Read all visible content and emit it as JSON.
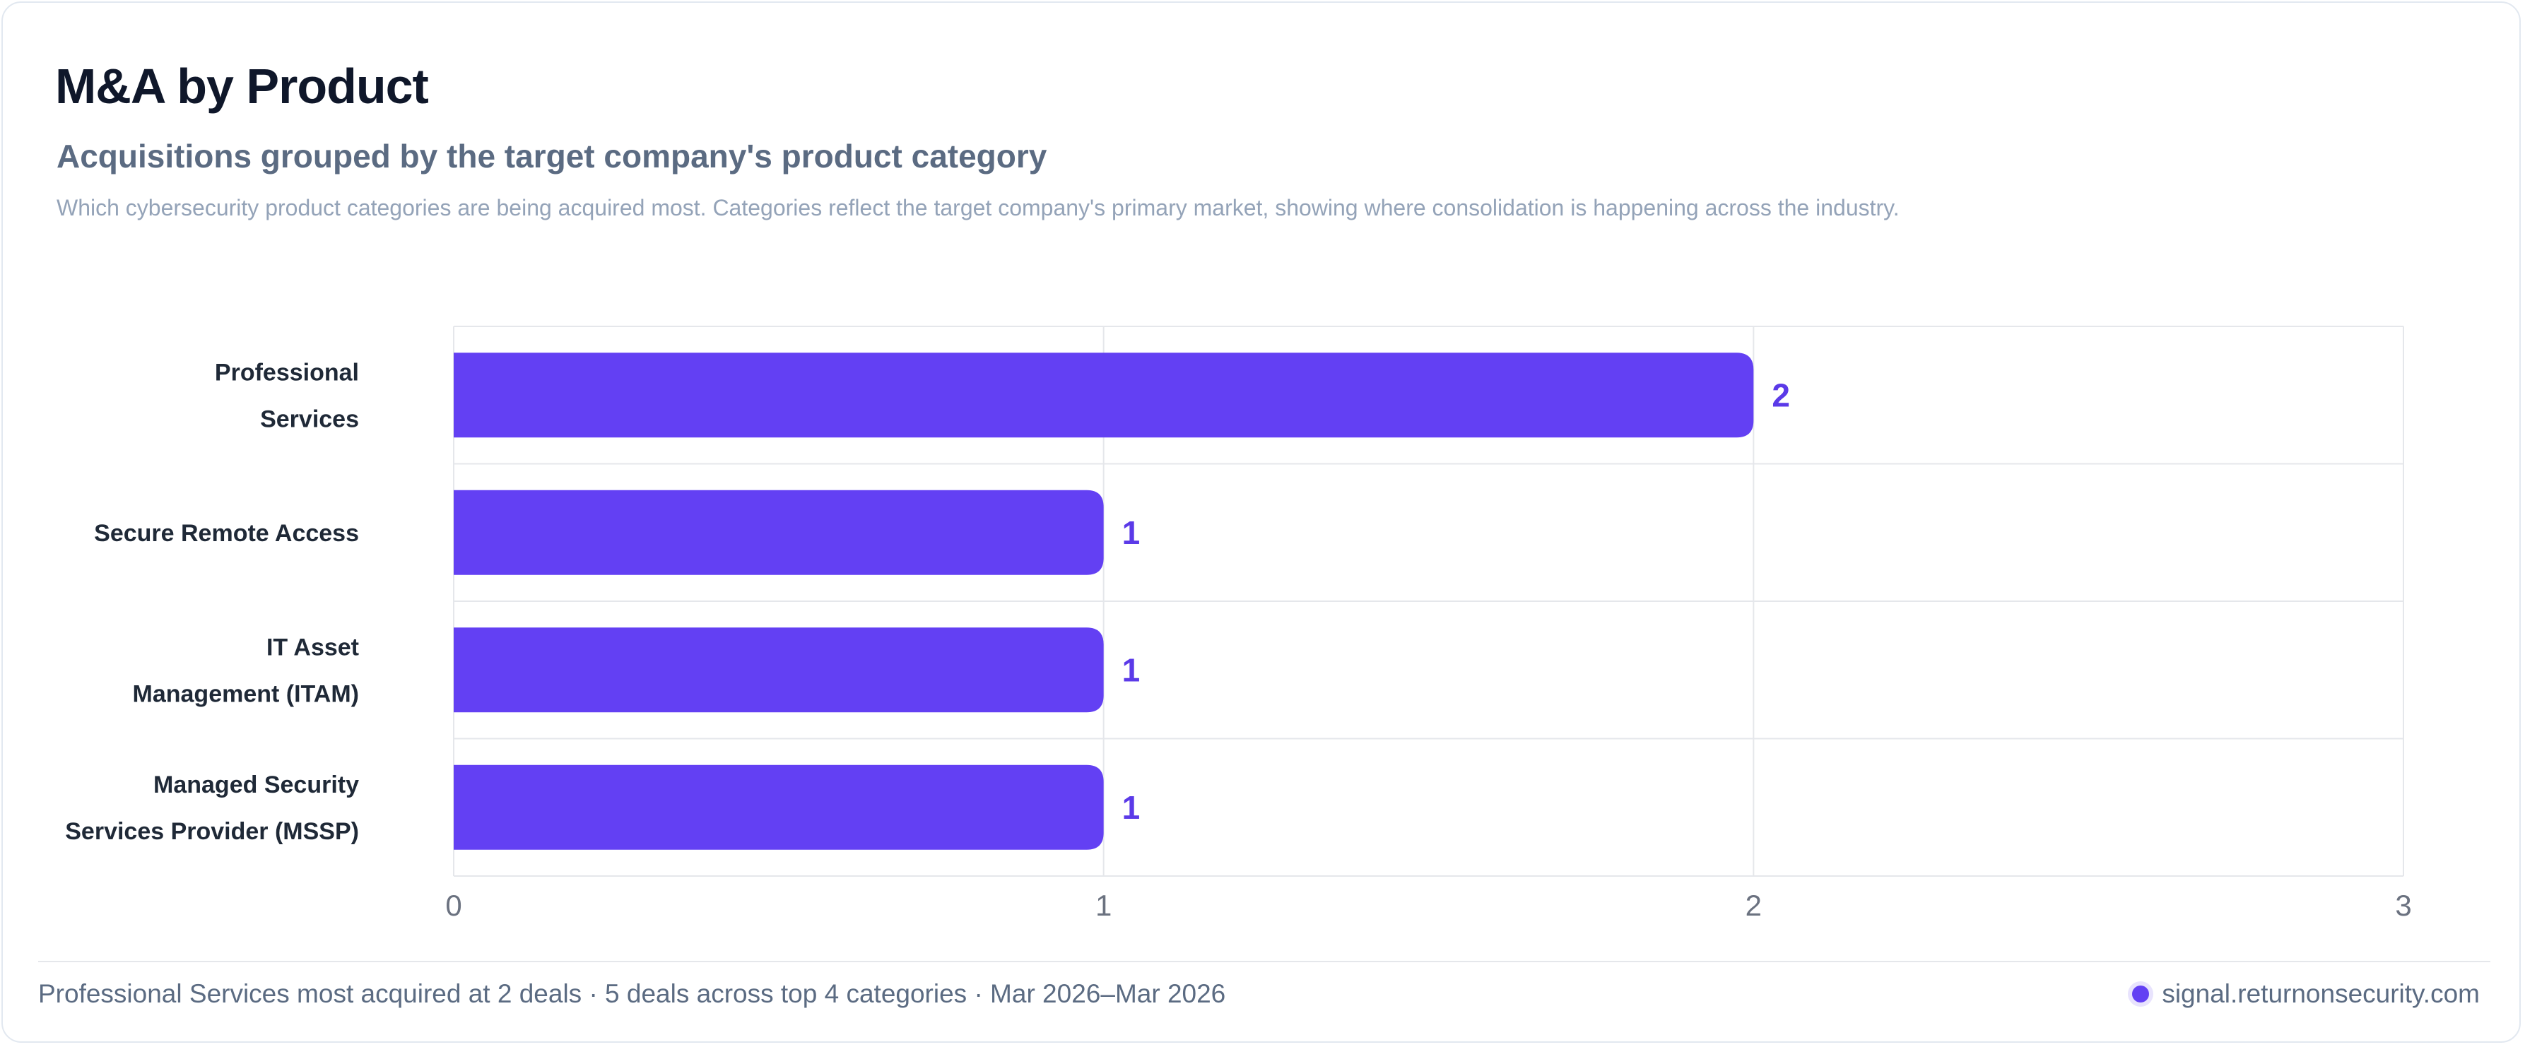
{
  "header": {
    "title": "M&A by Product",
    "subtitle": "Acquisitions grouped by the target company's product category",
    "description": "Which cybersecurity product categories are being acquired most. Categories reflect the target company's primary market, showing where consolidation is happening across the industry."
  },
  "chart_data": {
    "type": "bar",
    "orientation": "horizontal",
    "title": "M&A by Product",
    "categories": [
      [
        "Professional",
        "Services"
      ],
      [
        "Secure Remote Access"
      ],
      [
        "IT Asset",
        "Management (ITAM)"
      ],
      [
        "Managed Security",
        "Services Provider (MSSP)"
      ]
    ],
    "values": [
      2,
      1,
      1,
      1
    ],
    "xlim": [
      0,
      3
    ],
    "xticks": [
      "0",
      "1",
      "2",
      "3"
    ],
    "xlabel": "",
    "ylabel": "",
    "grid": true,
    "data_labels": [
      "2",
      "1",
      "1",
      "1"
    ]
  },
  "footer": {
    "summary": "Professional Services most acquired at 2 deals · 5 deals across top 4 categories · Mar 2026–Mar 2026",
    "source": "signal.returnonsecurity.com"
  },
  "colors": {
    "bar": "#6340f3",
    "label": "#5b3ae8",
    "grid": "#e5e7eb",
    "tick": "#6b7280",
    "category_text": "#1f2937",
    "brand_dot": "#6340f3"
  }
}
